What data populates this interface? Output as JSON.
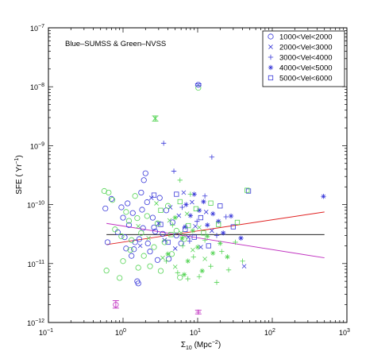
{
  "chart_data": {
    "type": "scatter",
    "annotation": "Blue–SUMSS & Green–NVSS",
    "xlabel_main": "Σ",
    "xlabel_sub": "10",
    "xlabel_rest": " (Mpc",
    "xlabel_sup": "−2",
    "xlabel_end": ")",
    "ylabel_main": "SFE ( Yr",
    "ylabel_sup": "−1",
    "ylabel_end": ")",
    "x_scale": "log",
    "y_scale": "log",
    "xlim": [
      0.1,
      1000
    ],
    "ylim": [
      1e-12,
      1e-07
    ],
    "x_ticks": [
      {
        "value": 0.1,
        "base": "10",
        "exp": "−1"
      },
      {
        "value": 1,
        "base": "10",
        "exp": "0"
      },
      {
        "value": 10,
        "base": "10",
        "exp": "1"
      },
      {
        "value": 100,
        "base": "10",
        "exp": "2"
      },
      {
        "value": 1000,
        "base": "10",
        "exp": "3"
      }
    ],
    "y_ticks": [
      {
        "value": 1e-12,
        "base": "10",
        "exp": "−12"
      },
      {
        "value": 1e-11,
        "base": "10",
        "exp": "−11"
      },
      {
        "value": 1e-10,
        "base": "10",
        "exp": "−10"
      },
      {
        "value": 1e-09,
        "base": "10",
        "exp": "−9"
      },
      {
        "value": 1e-08,
        "base": "10",
        "exp": "−8"
      },
      {
        "value": 1e-07,
        "base": "10",
        "exp": "−7"
      }
    ],
    "legend_position": "top-right",
    "legend": [
      {
        "label": "1000<Vel<2000",
        "marker": "circle"
      },
      {
        "label": "2000<Vel<3000",
        "marker": "x"
      },
      {
        "label": "3000<Vel<4000",
        "marker": "plus"
      },
      {
        "label": "4000<Vel<5000",
        "marker": "asterisk"
      },
      {
        "label": "5000<Vel<6000",
        "marker": "square"
      }
    ],
    "colors": {
      "sumss": "#3a3ad9",
      "nvss": "#55d455",
      "red_fit": "#e02020",
      "magenta_fit": "#c030c0",
      "black_fit": "#000000"
    },
    "fit_lines": [
      {
        "color": "red",
        "x": [
          0.6,
          500
        ],
        "y": [
          2.1e-11,
          7.5e-11
        ]
      },
      {
        "color": "magenta",
        "x": [
          0.6,
          500
        ],
        "y": [
          4.8e-11,
          1.25e-11
        ]
      },
      {
        "color": "black",
        "x": [
          0.6,
          500
        ],
        "y": [
          3.1e-11,
          3.1e-11
        ]
      }
    ],
    "error_bars": [
      {
        "color": "magenta",
        "x": 0.8,
        "y": 2e-12,
        "ylo": 1.75e-12,
        "yhi": 2.35e-12,
        "marker": "circle"
      },
      {
        "color": "green",
        "x": 2.7,
        "y": 2.9e-09,
        "ylo": 2.6e-09,
        "yhi": 3.2e-09,
        "marker": "x"
      },
      {
        "color": "blue",
        "x": 10.2,
        "y": 1.08e-08,
        "ylo": 1.04e-08,
        "yhi": 1.12e-08,
        "marker": "circle"
      },
      {
        "color": "magenta",
        "x": 10.2,
        "y": 1.5e-12,
        "ylo": 1.4e-12,
        "yhi": 1.62e-12,
        "marker": "plus"
      }
    ],
    "series": [
      {
        "name": "SUMSS",
        "color": "blue",
        "points": [
          {
            "x": 0.58,
            "y": 8.6e-11,
            "m": "circle"
          },
          {
            "x": 0.62,
            "y": 2.3e-11,
            "m": "circle"
          },
          {
            "x": 0.7,
            "y": 1.25e-10,
            "m": "circle"
          },
          {
            "x": 0.85,
            "y": 3.4e-11,
            "m": "circle"
          },
          {
            "x": 0.95,
            "y": 9e-11,
            "m": "circle"
          },
          {
            "x": 1.0,
            "y": 6e-11,
            "m": "circle"
          },
          {
            "x": 1.05,
            "y": 2.8e-11,
            "m": "circle"
          },
          {
            "x": 1.1,
            "y": 1.8e-11,
            "m": "circle"
          },
          {
            "x": 1.15,
            "y": 1.05e-10,
            "m": "circle"
          },
          {
            "x": 1.2,
            "y": 4.5e-11,
            "m": "circle"
          },
          {
            "x": 1.3,
            "y": 1.35e-11,
            "m": "circle"
          },
          {
            "x": 1.35,
            "y": 7.2e-11,
            "m": "circle"
          },
          {
            "x": 1.45,
            "y": 2.3e-11,
            "m": "circle"
          },
          {
            "x": 1.55,
            "y": 5e-12,
            "m": "circle"
          },
          {
            "x": 1.6,
            "y": 4.6e-12,
            "m": "circle"
          },
          {
            "x": 1.65,
            "y": 2.6e-11,
            "m": "circle"
          },
          {
            "x": 1.75,
            "y": 1.6e-10,
            "m": "circle"
          },
          {
            "x": 1.8,
            "y": 8.2e-11,
            "m": "circle"
          },
          {
            "x": 1.85,
            "y": 4e-11,
            "m": "circle"
          },
          {
            "x": 1.9,
            "y": 2.6e-10,
            "m": "circle"
          },
          {
            "x": 2.0,
            "y": 3.4e-10,
            "m": "circle"
          },
          {
            "x": 2.1,
            "y": 1.1e-10,
            "m": "circle"
          },
          {
            "x": 2.15,
            "y": 2.2e-11,
            "m": "circle"
          },
          {
            "x": 2.3,
            "y": 1.6e-11,
            "m": "circle"
          },
          {
            "x": 2.5,
            "y": 6e-11,
            "m": "circle"
          },
          {
            "x": 2.7,
            "y": 3.5e-11,
            "m": "circle"
          },
          {
            "x": 2.9,
            "y": 1.15e-11,
            "m": "circle"
          },
          {
            "x": 3.1,
            "y": 1.3e-10,
            "m": "circle"
          },
          {
            "x": 3.4,
            "y": 3.2e-11,
            "m": "circle"
          },
          {
            "x": 3.8,
            "y": 8e-11,
            "m": "circle"
          },
          {
            "x": 4.1,
            "y": 1.2e-11,
            "m": "circle"
          },
          {
            "x": 4.6,
            "y": 5e-11,
            "m": "circle"
          },
          {
            "x": 5.2,
            "y": 3e-11,
            "m": "circle"
          },
          {
            "x": 6.0,
            "y": 2.2e-11,
            "m": "circle"
          },
          {
            "x": 1.4,
            "y": 1.75e-11,
            "m": "circle"
          },
          {
            "x": 2.6,
            "y": 4.1e-11,
            "m": "circle"
          },
          {
            "x": 1.7,
            "y": 2e-11,
            "m": "x"
          },
          {
            "x": 2.4,
            "y": 1.3e-10,
            "m": "x"
          },
          {
            "x": 3.0,
            "y": 4.8e-11,
            "m": "x"
          },
          {
            "x": 3.6,
            "y": 2.5e-11,
            "m": "x"
          },
          {
            "x": 4.3,
            "y": 9e-11,
            "m": "x"
          },
          {
            "x": 5.0,
            "y": 1.8e-11,
            "m": "x"
          },
          {
            "x": 5.6,
            "y": 6.5e-11,
            "m": "x"
          },
          {
            "x": 6.5,
            "y": 1.6e-10,
            "m": "x"
          },
          {
            "x": 7.5,
            "y": 2.8e-11,
            "m": "x"
          },
          {
            "x": 8.4,
            "y": 1.1e-10,
            "m": "x"
          },
          {
            "x": 9.3,
            "y": 4.3e-11,
            "m": "x"
          },
          {
            "x": 11.0,
            "y": 1.9e-11,
            "m": "x"
          },
          {
            "x": 13.0,
            "y": 7.5e-11,
            "m": "x"
          },
          {
            "x": 15.5,
            "y": 3.6e-11,
            "m": "x"
          },
          {
            "x": 42.0,
            "y": 9e-12,
            "m": "x"
          },
          {
            "x": 3.5,
            "y": 1.1e-09,
            "m": "plus"
          },
          {
            "x": 15.5,
            "y": 6.4e-10,
            "m": "plus"
          },
          {
            "x": 6.2,
            "y": 9e-11,
            "m": "plus"
          },
          {
            "x": 7.8,
            "y": 2.4e-11,
            "m": "plus"
          },
          {
            "x": 9.8,
            "y": 5.2e-11,
            "m": "plus"
          },
          {
            "x": 12.5,
            "y": 1.4e-10,
            "m": "plus"
          },
          {
            "x": 18.0,
            "y": 3e-11,
            "m": "plus"
          },
          {
            "x": 24.0,
            "y": 6.2e-11,
            "m": "plus"
          },
          {
            "x": 4.8,
            "y": 3.7e-10,
            "m": "plus"
          },
          {
            "x": 7.0,
            "y": 1e-10,
            "m": "asterisk"
          },
          {
            "x": 8.0,
            "y": 6.5e-11,
            "m": "asterisk"
          },
          {
            "x": 9.0,
            "y": 1.5e-10,
            "m": "asterisk"
          },
          {
            "x": 10.5,
            "y": 8e-11,
            "m": "asterisk"
          },
          {
            "x": 12.0,
            "y": 1.12e-10,
            "m": "asterisk"
          },
          {
            "x": 13.5,
            "y": 4.5e-11,
            "m": "asterisk"
          },
          {
            "x": 16.0,
            "y": 7e-11,
            "m": "asterisk"
          },
          {
            "x": 19.0,
            "y": 5.2e-11,
            "m": "asterisk"
          },
          {
            "x": 22.0,
            "y": 3.3e-11,
            "m": "asterisk"
          },
          {
            "x": 28.0,
            "y": 6.4e-11,
            "m": "asterisk"
          },
          {
            "x": 38.0,
            "y": 2.7e-11,
            "m": "asterisk"
          },
          {
            "x": 485.0,
            "y": 1.38e-10,
            "m": "asterisk"
          },
          {
            "x": 6.8,
            "y": 4.2e-11,
            "m": "asterisk"
          },
          {
            "x": 2.6,
            "y": 1.45e-10,
            "m": "square"
          },
          {
            "x": 3.2,
            "y": 4.6e-11,
            "m": "square"
          },
          {
            "x": 4.0,
            "y": 2.3e-11,
            "m": "square"
          },
          {
            "x": 5.2,
            "y": 1.5e-10,
            "m": "square"
          },
          {
            "x": 6.8,
            "y": 3.8e-11,
            "m": "square"
          },
          {
            "x": 9.0,
            "y": 2.8e-11,
            "m": "square"
          },
          {
            "x": 11.0,
            "y": 6e-11,
            "m": "square"
          },
          {
            "x": 14.0,
            "y": 2e-11,
            "m": "square"
          },
          {
            "x": 20.0,
            "y": 9.5e-11,
            "m": "square"
          },
          {
            "x": 30.0,
            "y": 4.2e-11,
            "m": "square"
          },
          {
            "x": 48.0,
            "y": 1.7e-10,
            "m": "square"
          }
        ]
      },
      {
        "name": "NVSS",
        "color": "green",
        "points": [
          {
            "x": 0.56,
            "y": 1.7e-10,
            "m": "circle"
          },
          {
            "x": 0.6,
            "y": 7.6e-12,
            "m": "circle"
          },
          {
            "x": 0.64,
            "y": 1.6e-10,
            "m": "circle"
          },
          {
            "x": 0.72,
            "y": 1.2e-10,
            "m": "circle"
          },
          {
            "x": 0.78,
            "y": 3.8e-11,
            "m": "circle"
          },
          {
            "x": 0.9,
            "y": 5.7e-12,
            "m": "circle"
          },
          {
            "x": 1.0,
            "y": 1.1e-11,
            "m": "circle"
          },
          {
            "x": 1.1,
            "y": 7.5e-11,
            "m": "circle"
          },
          {
            "x": 1.2,
            "y": 5.3e-11,
            "m": "circle"
          },
          {
            "x": 1.3,
            "y": 2.5e-11,
            "m": "circle"
          },
          {
            "x": 1.45,
            "y": 1.4e-10,
            "m": "circle"
          },
          {
            "x": 1.6,
            "y": 8.5e-12,
            "m": "circle"
          },
          {
            "x": 1.75,
            "y": 3.3e-11,
            "m": "circle"
          },
          {
            "x": 1.9,
            "y": 1.35e-11,
            "m": "circle"
          },
          {
            "x": 2.1,
            "y": 6.4e-11,
            "m": "circle"
          },
          {
            "x": 2.3,
            "y": 9e-12,
            "m": "circle"
          },
          {
            "x": 2.6,
            "y": 1.9e-11,
            "m": "circle"
          },
          {
            "x": 2.9,
            "y": 4.8e-11,
            "m": "circle"
          },
          {
            "x": 3.2,
            "y": 7.5e-12,
            "m": "circle"
          },
          {
            "x": 3.6,
            "y": 2.3e-11,
            "m": "circle"
          },
          {
            "x": 4.0,
            "y": 9.5e-11,
            "m": "circle"
          },
          {
            "x": 4.5,
            "y": 1.45e-11,
            "m": "circle"
          },
          {
            "x": 5.2,
            "y": 3.6e-11,
            "m": "circle"
          },
          {
            "x": 5.8,
            "y": 5.8e-12,
            "m": "circle"
          },
          {
            "x": 6.6,
            "y": 2.6e-11,
            "m": "circle"
          },
          {
            "x": 1.25,
            "y": 1.7e-11,
            "m": "circle"
          },
          {
            "x": 0.95,
            "y": 2.9e-11,
            "m": "circle"
          },
          {
            "x": 1.55,
            "y": 5.9e-11,
            "m": "circle"
          },
          {
            "x": 10.2,
            "y": 9.6e-09,
            "m": "circle"
          },
          {
            "x": 1.6,
            "y": 4.3e-11,
            "m": "x"
          },
          {
            "x": 2.2,
            "y": 2.7e-11,
            "m": "x"
          },
          {
            "x": 2.8,
            "y": 1.05e-10,
            "m": "x"
          },
          {
            "x": 3.4,
            "y": 1.25e-11,
            "m": "x"
          },
          {
            "x": 4.2,
            "y": 5.4e-11,
            "m": "x"
          },
          {
            "x": 5.0,
            "y": 8.8e-12,
            "m": "x"
          },
          {
            "x": 6.0,
            "y": 3.3e-11,
            "m": "x"
          },
          {
            "x": 7.2,
            "y": 7e-11,
            "m": "x"
          },
          {
            "x": 8.6,
            "y": 1.7e-11,
            "m": "x"
          },
          {
            "x": 10.5,
            "y": 4.1e-11,
            "m": "x"
          },
          {
            "x": 12.5,
            "y": 1.2e-11,
            "m": "x"
          },
          {
            "x": 2.7,
            "y": 2.9e-09,
            "m": "x"
          },
          {
            "x": 3.8,
            "y": 1.1e-11,
            "m": "plus"
          },
          {
            "x": 4.6,
            "y": 4.5e-11,
            "m": "plus"
          },
          {
            "x": 5.4,
            "y": 7e-12,
            "m": "plus"
          },
          {
            "x": 6.3,
            "y": 2e-11,
            "m": "plus"
          },
          {
            "x": 7.4,
            "y": 5.5e-12,
            "m": "plus"
          },
          {
            "x": 8.8,
            "y": 1.3e-11,
            "m": "plus"
          },
          {
            "x": 10.5,
            "y": 6e-12,
            "m": "plus"
          },
          {
            "x": 12.5,
            "y": 2.5e-11,
            "m": "plus"
          },
          {
            "x": 15.0,
            "y": 9e-12,
            "m": "plus"
          },
          {
            "x": 18.0,
            "y": 4.8e-12,
            "m": "plus"
          },
          {
            "x": 21.0,
            "y": 1.6e-11,
            "m": "plus"
          },
          {
            "x": 26.0,
            "y": 7.8e-12,
            "m": "plus"
          },
          {
            "x": 32.0,
            "y": 2.3e-11,
            "m": "plus"
          },
          {
            "x": 40.0,
            "y": 1.1e-11,
            "m": "plus"
          },
          {
            "x": 5.8,
            "y": 2.6e-10,
            "m": "plus"
          },
          {
            "x": 8.0,
            "y": 1.5e-10,
            "m": "plus"
          },
          {
            "x": 4.0,
            "y": 1.45e-11,
            "m": "asterisk"
          },
          {
            "x": 5.0,
            "y": 6e-11,
            "m": "asterisk"
          },
          {
            "x": 6.2,
            "y": 2.7e-11,
            "m": "asterisk"
          },
          {
            "x": 7.4,
            "y": 1.1e-11,
            "m": "asterisk"
          },
          {
            "x": 8.6,
            "y": 3.6e-11,
            "m": "asterisk"
          },
          {
            "x": 10.0,
            "y": 1.9e-11,
            "m": "asterisk"
          },
          {
            "x": 11.5,
            "y": 7.5e-12,
            "m": "asterisk"
          },
          {
            "x": 13.5,
            "y": 2.9e-11,
            "m": "asterisk"
          },
          {
            "x": 16.0,
            "y": 1.5e-11,
            "m": "asterisk"
          },
          {
            "x": 20.0,
            "y": 2.2e-11,
            "m": "asterisk"
          },
          {
            "x": 25.0,
            "y": 1.3e-11,
            "m": "asterisk"
          },
          {
            "x": 6.6,
            "y": 6.5e-12,
            "m": "asterisk"
          },
          {
            "x": 3.2,
            "y": 8e-11,
            "m": "square"
          },
          {
            "x": 4.4,
            "y": 3.1e-11,
            "m": "square"
          },
          {
            "x": 5.8,
            "y": 1.12e-10,
            "m": "square"
          },
          {
            "x": 7.5,
            "y": 4.4e-11,
            "m": "square"
          },
          {
            "x": 9.5,
            "y": 8.5e-11,
            "m": "square"
          },
          {
            "x": 12.0,
            "y": 3.3e-11,
            "m": "square"
          },
          {
            "x": 15.0,
            "y": 1.06e-10,
            "m": "square"
          },
          {
            "x": 19.0,
            "y": 4.6e-11,
            "m": "square"
          },
          {
            "x": 34.0,
            "y": 5e-11,
            "m": "square"
          },
          {
            "x": 46.0,
            "y": 1.75e-10,
            "m": "square"
          }
        ]
      }
    ]
  }
}
